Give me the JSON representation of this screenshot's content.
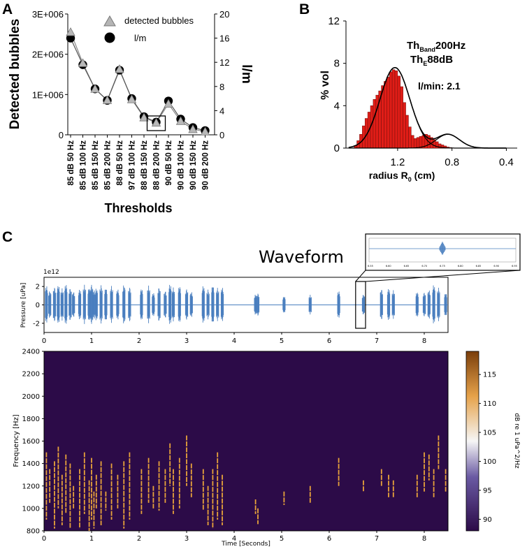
{
  "panels": {
    "a": "A",
    "b": "B",
    "c": "C"
  },
  "chart_data": [
    {
      "id": "A",
      "type": "line",
      "categories": [
        "85 dB 50 Hz",
        "85 dB 100 Hz",
        "85 dB 150 Hz",
        "85 dB 200 Hz",
        "88 dB 50 Hz",
        "97 dB 100 Hz",
        "88 dB 150 Hz",
        "88 dB 200 Hz",
        "90 dB 50 Hz",
        "90 dB 100 Hz",
        "90 dB 150 Hz",
        "90 dB 200 Hz"
      ],
      "xlabel": "Thresholds",
      "ylabel": "Detected bubbles",
      "ylabel_right": "l/m",
      "ylim": [
        0,
        3000000
      ],
      "yticks": [
        "0",
        "1E+006",
        "2E+006",
        "3E+006"
      ],
      "ylim_right": [
        0,
        20
      ],
      "yticks_right": [
        "0",
        "4",
        "8",
        "12",
        "16",
        "20"
      ],
      "highlight_index": 7,
      "series": [
        {
          "name": "detected bubbles",
          "marker": "triangle",
          "axis": "left",
          "values": [
            2550000,
            1780000,
            1140000,
            860000,
            1630000,
            880000,
            430000,
            300000,
            770000,
            340000,
            140000,
            80000
          ]
        },
        {
          "name": "l/m",
          "marker": "circle",
          "axis": "right",
          "values": [
            16.0,
            11.6,
            7.6,
            5.7,
            10.7,
            6.0,
            3.0,
            2.1,
            5.6,
            2.6,
            1.2,
            0.7
          ]
        }
      ]
    },
    {
      "id": "B",
      "type": "bar",
      "ylabel": "% vol",
      "xlabel_main": "radius R",
      "xlabel_sub": "0",
      "xlabel_unit": " (cm)",
      "xticks": [
        "1.2",
        "0.8",
        "0.4"
      ],
      "xtick_values": [
        1.2,
        0.8,
        0.4
      ],
      "xlim": [
        1.58,
        0.32
      ],
      "ylim": [
        0,
        12
      ],
      "yticks": [
        "0",
        "4",
        "8",
        "12"
      ],
      "annotation": {
        "line1_main": "Th",
        "line1_sub": "Band",
        "line1_rest": "200Hz",
        "line2_main": "Th",
        "line2_sub": "E",
        "line2_rest": "88dB",
        "line3": "l/min: 2.1"
      },
      "bin_start": 1.52,
      "bin_width": 0.02,
      "values": [
        0.25,
        0.7,
        1.3,
        2.1,
        2.8,
        3.4,
        4.0,
        4.6,
        5.0,
        5.4,
        5.9,
        6.3,
        6.7,
        7.2,
        7.4,
        7.3,
        6.8,
        5.8,
        4.3,
        3.1,
        2.0,
        1.2,
        0.9,
        1.0,
        1.1,
        1.2,
        1.3,
        1.2,
        1.0,
        0.8,
        0.6,
        0.4,
        0.3,
        0.2,
        0.1,
        0.05
      ],
      "fit_peak1": {
        "mu": 1.22,
        "sigma": 0.11,
        "amp": 7.6
      },
      "fit_peak2": {
        "mu": 0.83,
        "sigma": 0.085,
        "amp": 1.3
      }
    },
    {
      "id": "C-waveform",
      "type": "line",
      "title": "Waveform",
      "ylabel": "Pressure [uPa]",
      "scale_label": "1e12",
      "xlim": [
        0,
        8.5
      ],
      "ylim": [
        -3,
        3
      ],
      "xticks": [
        "0",
        "1",
        "2",
        "3",
        "4",
        "5",
        "6",
        "7",
        "8"
      ],
      "yticks": [
        "-2",
        "0",
        "2"
      ],
      "highlight_range": [
        6.6,
        6.75
      ],
      "inset_xticks": [
        "6.55",
        "6.60",
        "6.65",
        "6.70",
        "6.75",
        "6.80",
        "6.85",
        "6.90",
        "6.95"
      ],
      "burst_times": [
        0.05,
        0.12,
        0.22,
        0.3,
        0.38,
        0.46,
        0.55,
        0.62,
        0.75,
        0.85,
        0.95,
        1.0,
        1.05,
        1.1,
        1.2,
        1.3,
        1.42,
        1.55,
        1.68,
        1.8,
        2.05,
        2.2,
        2.3,
        2.42,
        2.55,
        2.65,
        2.72,
        2.85,
        3.0,
        3.1,
        3.35,
        3.45,
        3.55,
        3.65,
        3.75,
        4.45,
        4.5,
        5.05,
        5.6,
        6.2,
        6.72,
        7.1,
        7.25,
        7.35,
        7.85,
        8.0,
        8.1,
        8.2,
        8.3,
        8.45
      ],
      "burst_amps": [
        2.2,
        1.6,
        2.0,
        2.3,
        1.8,
        2.4,
        1.9,
        1.5,
        1.8,
        2.2,
        2.0,
        2.3,
        1.7,
        1.9,
        2.2,
        2.0,
        2.1,
        1.8,
        2.3,
        2.0,
        1.9,
        2.1,
        1.4,
        2.0,
        1.6,
        2.4,
        1.9,
        2.2,
        1.8,
        1.5,
        2.2,
        1.7,
        2.3,
        1.9,
        2.0,
        1.2,
        1.3,
        1.0,
        1.1,
        1.6,
        1.2,
        1.8,
        1.9,
        1.6,
        1.5,
        1.4,
        1.7,
        2.3,
        1.9,
        1.4
      ]
    },
    {
      "id": "C-spectrogram",
      "type": "heatmap",
      "xlabel": "Time [Seconds]",
      "ylabel": "Frequency [Hz]",
      "xlim": [
        0,
        8.5
      ],
      "ylim": [
        800,
        2400
      ],
      "xticks": [
        "0",
        "1",
        "2",
        "3",
        "4",
        "5",
        "6",
        "7",
        "8"
      ],
      "yticks": [
        "800",
        "1000",
        "1200",
        "1400",
        "1600",
        "1800",
        "2000",
        "2200",
        "2400"
      ],
      "colorbar_label": "dB re 1 uPa^2/Hz",
      "colorbar_ticks": [
        "90",
        "95",
        "100",
        "105",
        "110",
        "115"
      ],
      "clim": [
        88,
        119
      ],
      "background": "#2c0b48",
      "streak_color": "#e8a33a",
      "streaks": [
        [
          0.05,
          900,
          1500
        ],
        [
          0.12,
          1050,
          1350
        ],
        [
          0.22,
          820,
          1420
        ],
        [
          0.3,
          1000,
          1550
        ],
        [
          0.38,
          850,
          1300
        ],
        [
          0.46,
          960,
          1480
        ],
        [
          0.55,
          820,
          1400
        ],
        [
          0.62,
          1000,
          1200
        ],
        [
          0.75,
          820,
          1350
        ],
        [
          0.85,
          950,
          1500
        ],
        [
          0.95,
          800,
          1250
        ],
        [
          1.0,
          900,
          1450
        ],
        [
          1.05,
          820,
          1150
        ],
        [
          1.1,
          1000,
          1300
        ],
        [
          1.2,
          850,
          1420
        ],
        [
          1.3,
          980,
          1150
        ],
        [
          1.42,
          900,
          1400
        ],
        [
          1.55,
          1000,
          1300
        ],
        [
          1.68,
          820,
          1420
        ],
        [
          1.8,
          900,
          1500
        ],
        [
          2.05,
          950,
          1350
        ],
        [
          2.2,
          1050,
          1450
        ],
        [
          2.3,
          1000,
          1200
        ],
        [
          2.42,
          980,
          1420
        ],
        [
          2.55,
          1050,
          1350
        ],
        [
          2.65,
          1200,
          1580
        ],
        [
          2.72,
          950,
          1350
        ],
        [
          2.85,
          1000,
          1450
        ],
        [
          3.0,
          1200,
          1650
        ],
        [
          3.1,
          1100,
          1400
        ],
        [
          3.35,
          980,
          1350
        ],
        [
          3.45,
          850,
          1200
        ],
        [
          3.55,
          820,
          1350
        ],
        [
          3.65,
          900,
          1500
        ],
        [
          3.75,
          850,
          1300
        ],
        [
          4.45,
          950,
          1080
        ],
        [
          4.5,
          860,
          1000
        ],
        [
          5.05,
          1030,
          1150
        ],
        [
          5.6,
          1050,
          1200
        ],
        [
          6.2,
          1200,
          1450
        ],
        [
          6.72,
          1150,
          1250
        ],
        [
          7.1,
          1200,
          1350
        ],
        [
          7.25,
          1100,
          1300
        ],
        [
          7.35,
          1100,
          1250
        ],
        [
          7.85,
          1100,
          1300
        ],
        [
          8.0,
          1150,
          1500
        ],
        [
          8.1,
          1250,
          1480
        ],
        [
          8.2,
          1100,
          1350
        ],
        [
          8.3,
          1350,
          1650
        ],
        [
          8.45,
          1150,
          1350
        ]
      ]
    }
  ]
}
